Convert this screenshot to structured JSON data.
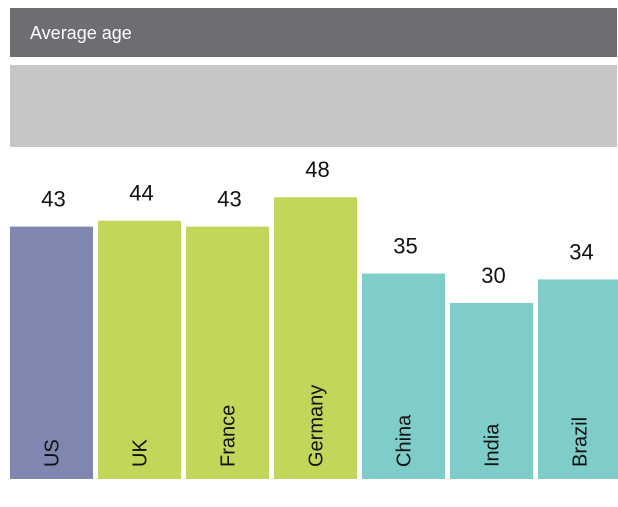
{
  "header": {
    "title": "Average age",
    "subtitle": ""
  },
  "chart_data": {
    "type": "bar",
    "title": "Average age",
    "categories": [
      "US",
      "UK",
      "France",
      "Germany",
      "China",
      "India",
      "Brazil"
    ],
    "values": [
      43,
      44,
      43,
      48,
      35,
      30,
      34
    ],
    "xlabel": "",
    "ylabel": "",
    "ylim": [
      0,
      53
    ],
    "grid": false,
    "legend": "none",
    "data_labels": true,
    "colors": [
      "#7f86b0",
      "#c2d75a",
      "#c2d75a",
      "#c2d75a",
      "#7ecdc9",
      "#7ecdc9",
      "#7ecdc9"
    ]
  }
}
